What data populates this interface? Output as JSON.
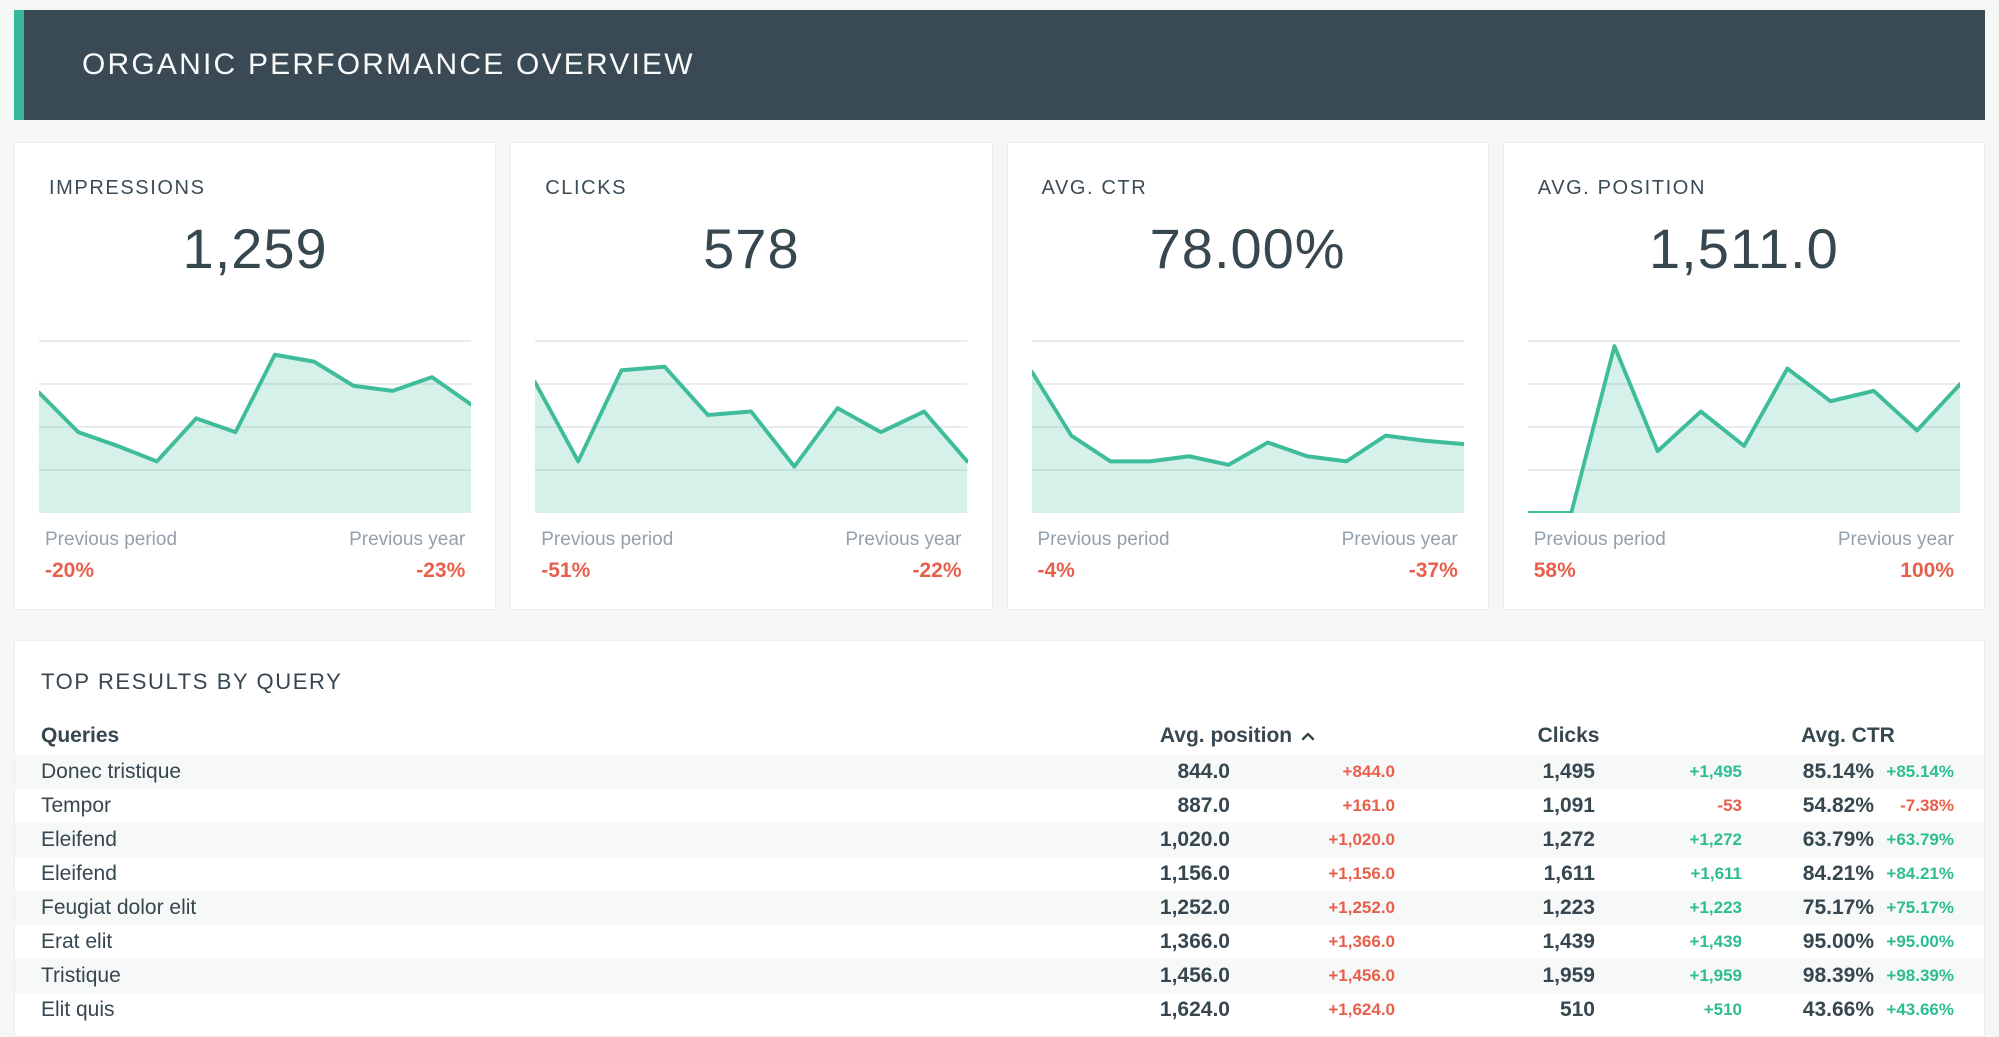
{
  "header": {
    "title": "ORGANIC PERFORMANCE OVERVIEW"
  },
  "colors": {
    "header_background": "#3a4a54",
    "accent_teal": "#35b89b",
    "sparkline_line": "#3fbd9b",
    "sparkline_fill": "rgba(63,189,155,0.22)",
    "negative_red": "#e8604c",
    "positive_green": "#2ebd92",
    "text_dark": "#36474f",
    "text_muted": "#93a1ac"
  },
  "compare_labels": {
    "previous_period": "Previous period",
    "previous_year": "Previous year"
  },
  "kpi_cards": [
    {
      "label": "IMPRESSIONS",
      "value": "1,259",
      "previous_period_delta": "-20%",
      "previous_year_delta": "-23%",
      "period_tone": "bad",
      "year_tone": "bad",
      "sparkline": [
        70,
        47,
        39,
        30,
        55,
        47,
        92,
        88,
        74,
        71,
        79,
        63
      ]
    },
    {
      "label": "CLICKS",
      "value": "578",
      "previous_period_delta": "-51%",
      "previous_year_delta": "-22%",
      "period_tone": "bad",
      "year_tone": "bad",
      "sparkline": [
        76,
        30,
        83,
        85,
        57,
        59,
        27,
        61,
        47,
        59,
        30
      ]
    },
    {
      "label": "AVG. CTR",
      "value": "78.00%",
      "previous_period_delta": "-4%",
      "previous_year_delta": "-37%",
      "period_tone": "bad",
      "year_tone": "bad",
      "sparkline": [
        82,
        45,
        30,
        30,
        33,
        28,
        41,
        33,
        30,
        45,
        42,
        40
      ]
    },
    {
      "label": "AVG. POSITION",
      "value": "1,511.0",
      "previous_period_delta": "58%",
      "previous_year_delta": "100%",
      "period_tone": "bad",
      "year_tone": "bad",
      "sparkline": [
        0,
        0,
        97,
        36,
        59,
        39,
        84,
        65,
        71,
        48,
        75
      ]
    }
  ],
  "table": {
    "title": "TOP RESULTS BY QUERY",
    "columns": {
      "queries": "Queries",
      "avg_position": "Avg. position",
      "clicks": "Clicks",
      "avg_ctr": "Avg. CTR"
    },
    "sorted_column": "avg_position",
    "sort_direction": "ascending",
    "rows": [
      {
        "query": "Donec tristique",
        "avg_position": "844.0",
        "avg_position_delta": "+844.0",
        "avg_position_tone": "bad",
        "clicks": "1,495",
        "clicks_delta": "+1,495",
        "clicks_tone": "good",
        "ctr": "85.14%",
        "ctr_delta": "+85.14%",
        "ctr_tone": "good"
      },
      {
        "query": "Tempor",
        "avg_position": "887.0",
        "avg_position_delta": "+161.0",
        "avg_position_tone": "bad",
        "clicks": "1,091",
        "clicks_delta": "-53",
        "clicks_tone": "bad",
        "ctr": "54.82%",
        "ctr_delta": "-7.38%",
        "ctr_tone": "bad"
      },
      {
        "query": "Eleifend",
        "avg_position": "1,020.0",
        "avg_position_delta": "+1,020.0",
        "avg_position_tone": "bad",
        "clicks": "1,272",
        "clicks_delta": "+1,272",
        "clicks_tone": "good",
        "ctr": "63.79%",
        "ctr_delta": "+63.79%",
        "ctr_tone": "good"
      },
      {
        "query": "Eleifend",
        "avg_position": "1,156.0",
        "avg_position_delta": "+1,156.0",
        "avg_position_tone": "bad",
        "clicks": "1,611",
        "clicks_delta": "+1,611",
        "clicks_tone": "good",
        "ctr": "84.21%",
        "ctr_delta": "+84.21%",
        "ctr_tone": "good"
      },
      {
        "query": "Feugiat dolor elit",
        "avg_position": "1,252.0",
        "avg_position_delta": "+1,252.0",
        "avg_position_tone": "bad",
        "clicks": "1,223",
        "clicks_delta": "+1,223",
        "clicks_tone": "good",
        "ctr": "75.17%",
        "ctr_delta": "+75.17%",
        "ctr_tone": "good"
      },
      {
        "query": "Erat elit",
        "avg_position": "1,366.0",
        "avg_position_delta": "+1,366.0",
        "avg_position_tone": "bad",
        "clicks": "1,439",
        "clicks_delta": "+1,439",
        "clicks_tone": "good",
        "ctr": "95.00%",
        "ctr_delta": "+95.00%",
        "ctr_tone": "good"
      },
      {
        "query": "Tristique",
        "avg_position": "1,456.0",
        "avg_position_delta": "+1,456.0",
        "avg_position_tone": "bad",
        "clicks": "1,959",
        "clicks_delta": "+1,959",
        "clicks_tone": "good",
        "ctr": "98.39%",
        "ctr_delta": "+98.39%",
        "ctr_tone": "good"
      },
      {
        "query": "Elit quis",
        "avg_position": "1,624.0",
        "avg_position_delta": "+1,624.0",
        "avg_position_tone": "bad",
        "clicks": "510",
        "clicks_delta": "+510",
        "clicks_tone": "good",
        "ctr": "43.66%",
        "ctr_delta": "+43.66%",
        "ctr_tone": "good"
      }
    ]
  },
  "chart_data": [
    {
      "type": "area",
      "title": "IMPRESSIONS sparkline",
      "current_value": 1259,
      "x": "time (unlabeled, previous period to now)",
      "ylabel": "",
      "axis_labels_shown": false,
      "relative_values_pct_of_chart_height": [
        70,
        47,
        39,
        30,
        55,
        47,
        92,
        88,
        74,
        71,
        79,
        63
      ],
      "previous_period_change": "-20%",
      "previous_year_change": "-23%",
      "grid": "4 horizontal gridlines"
    },
    {
      "type": "area",
      "title": "CLICKS sparkline",
      "current_value": 578,
      "axis_labels_shown": false,
      "relative_values_pct_of_chart_height": [
        76,
        30,
        83,
        85,
        57,
        59,
        27,
        61,
        47,
        59,
        30
      ],
      "previous_period_change": "-51%",
      "previous_year_change": "-22%",
      "grid": "4 horizontal gridlines"
    },
    {
      "type": "area",
      "title": "AVG. CTR sparkline",
      "current_value": "78.00%",
      "axis_labels_shown": false,
      "relative_values_pct_of_chart_height": [
        82,
        45,
        30,
        30,
        33,
        28,
        41,
        33,
        30,
        45,
        42,
        40
      ],
      "previous_period_change": "-4%",
      "previous_year_change": "-37%",
      "grid": "4 horizontal gridlines"
    },
    {
      "type": "area",
      "title": "AVG. POSITION sparkline",
      "current_value": 1511.0,
      "axis_labels_shown": false,
      "relative_values_pct_of_chart_height": [
        0,
        0,
        97,
        36,
        59,
        39,
        84,
        65,
        71,
        48,
        75
      ],
      "previous_period_change": "58%",
      "previous_year_change": "100%",
      "grid": "4 horizontal gridlines"
    }
  ]
}
